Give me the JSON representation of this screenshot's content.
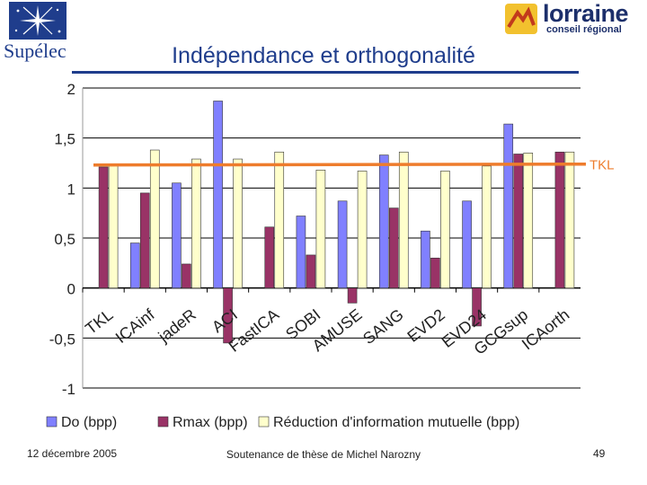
{
  "header": {
    "supelec_logo_text": "Supélec",
    "lorraine_name": "lorraine",
    "lorraine_subtitle": "conseil régional"
  },
  "slide": {
    "title": "Indépendance et orthogonalité"
  },
  "footer": {
    "date": "12 décembre 2005",
    "description": "Soutenance de thèse de Michel Narozny",
    "page_number": "49"
  },
  "colors": {
    "title": "#1f3d8c",
    "series_do": "#8080ff",
    "series_rmax": "#993366",
    "series_reduction": "#ffffcc",
    "tkl_line": "#ee7c2c"
  },
  "chart_data": {
    "type": "bar",
    "categories": [
      "TKL",
      "ICAinf",
      "jadeR",
      "ACI",
      "FastICA",
      "SOBI",
      "AMUSE",
      "SANG",
      "EVD2",
      "EVD24",
      "GCGsup",
      "ICAorth"
    ],
    "series": [
      {
        "name": "Do (bpp)",
        "values": [
          null,
          0.45,
          1.05,
          1.87,
          null,
          0.72,
          0.87,
          1.33,
          0.57,
          0.87,
          1.64,
          null
        ]
      },
      {
        "name": "Rmax (bpp)",
        "values": [
          1.21,
          0.95,
          0.24,
          -0.55,
          0.61,
          0.33,
          -0.15,
          0.8,
          0.3,
          -0.38,
          1.34,
          1.36
        ]
      },
      {
        "name": "Réduction d'information mutuelle (bpp)",
        "values": [
          1.23,
          1.38,
          1.29,
          1.29,
          1.36,
          1.18,
          1.17,
          1.36,
          1.17,
          1.22,
          1.35,
          1.36
        ]
      }
    ],
    "reference_line": {
      "label": "TKL",
      "value": 1.23
    },
    "yticks": [
      "2",
      "1,5",
      "1",
      "0,5",
      "0",
      "-0,5",
      "-1"
    ],
    "ytick_values": [
      2,
      1.5,
      1,
      0.5,
      0,
      -0.5,
      -1
    ],
    "ylim": [
      -1,
      2
    ],
    "xlabel": "",
    "ylabel": "",
    "grid": true,
    "legend_position": "bottom"
  }
}
